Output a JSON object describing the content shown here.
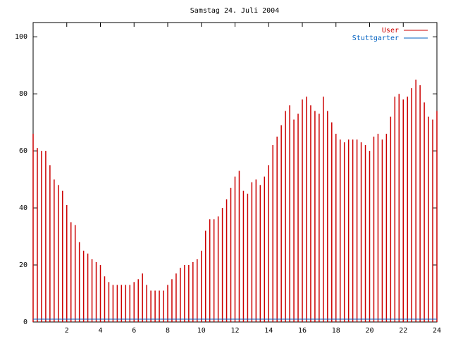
{
  "chart_data": {
    "type": "impulse",
    "title": "Samstag 24. Juli 2004",
    "x": [
      0,
      0.25,
      0.5,
      0.75,
      1,
      1.25,
      1.5,
      1.75,
      2,
      2.25,
      2.5,
      2.75,
      3,
      3.25,
      3.5,
      3.75,
      4,
      4.25,
      4.5,
      4.75,
      5,
      5.25,
      5.5,
      5.75,
      6,
      6.25,
      6.5,
      6.75,
      7,
      7.25,
      7.5,
      7.75,
      8,
      8.25,
      8.5,
      8.75,
      9,
      9.25,
      9.5,
      9.75,
      10,
      10.25,
      10.5,
      10.75,
      11,
      11.25,
      11.5,
      11.75,
      12,
      12.25,
      12.5,
      12.75,
      13,
      13.25,
      13.5,
      13.75,
      14,
      14.25,
      14.5,
      14.75,
      15,
      15.25,
      15.5,
      15.75,
      16,
      16.25,
      16.5,
      16.75,
      17,
      17.25,
      17.5,
      17.75,
      18,
      18.25,
      18.5,
      18.75,
      19,
      19.25,
      19.5,
      19.75,
      20,
      20.25,
      20.5,
      20.75,
      21,
      21.25,
      21.5,
      21.75,
      22,
      22.25,
      22.5,
      22.75,
      23,
      23.25,
      23.5,
      23.75,
      24
    ],
    "series": [
      {
        "name": "User",
        "color": "#cc0000",
        "style": "impulses",
        "values": [
          66,
          61,
          60,
          60,
          55,
          50,
          48,
          46,
          41,
          35,
          34,
          28,
          25,
          24,
          22,
          21,
          20,
          16,
          14,
          13,
          13,
          13,
          13,
          13,
          14,
          15,
          17,
          13,
          11,
          11,
          11,
          11,
          13,
          15,
          17,
          19,
          20,
          20,
          21,
          22,
          25,
          32,
          36,
          36,
          37,
          40,
          43,
          47,
          51,
          53,
          46,
          45,
          49,
          50,
          48,
          51,
          55,
          62,
          65,
          69,
          74,
          76,
          71,
          73,
          78,
          79,
          76,
          74,
          73,
          79,
          74,
          70,
          66,
          64,
          63,
          64,
          64,
          64,
          63,
          62,
          60,
          65,
          66,
          64,
          66,
          72,
          79,
          80,
          78,
          79,
          82,
          85,
          83,
          77,
          72,
          71,
          74
        ]
      },
      {
        "name": "Stuttgarter",
        "color": "#0060c0",
        "style": "line",
        "x": [
          0,
          24
        ],
        "values": [
          1,
          1
        ]
      }
    ],
    "xlim": [
      0,
      24
    ],
    "xticks": [
      2,
      4,
      6,
      8,
      10,
      12,
      14,
      16,
      18,
      20,
      22,
      24
    ],
    "ylim": [
      0,
      105
    ],
    "yticks": [
      0,
      20,
      40,
      60,
      80,
      100
    ],
    "legend": "top-right"
  }
}
